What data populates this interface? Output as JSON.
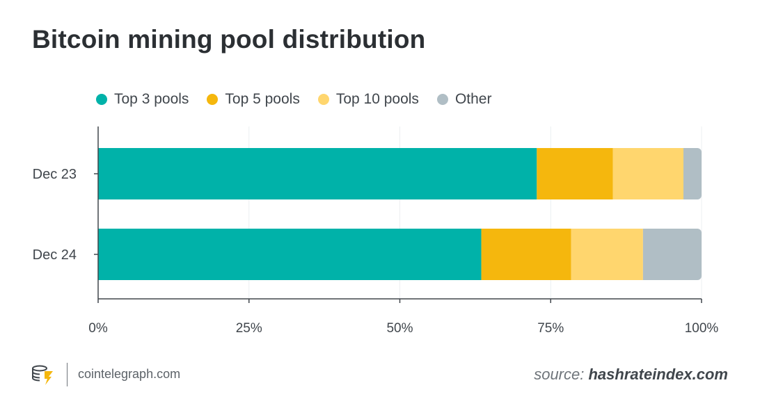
{
  "header": {
    "title": "Bitcoin mining pool distribution"
  },
  "footer": {
    "site": "cointelegraph.com",
    "source_prefix": "source:",
    "source_name": "hashrateindex.com",
    "logo_icon": "cointelegraph-logo-icon"
  },
  "chart_data": {
    "type": "bar",
    "orientation": "horizontal",
    "stacked": true,
    "title": "Bitcoin mining pool distribution",
    "categories": [
      "Dec 23",
      "Dec 24"
    ],
    "series": [
      {
        "name": "Top 3 pools",
        "color": "#00b2a9",
        "values": [
          72.7,
          63.5
        ]
      },
      {
        "name": "Top 5 pools",
        "color": "#f5b70d",
        "values": [
          12.6,
          14.9
        ]
      },
      {
        "name": "Top 10 pools",
        "color": "#ffd66e",
        "values": [
          11.7,
          11.9
        ]
      },
      {
        "name": "Other",
        "color": "#b0bec5",
        "values": [
          3.0,
          9.7
        ]
      }
    ],
    "xlim": [
      0,
      100
    ],
    "xticks": [
      "0%",
      "25%",
      "50%",
      "75%",
      "100%"
    ],
    "grid": true,
    "legend_position": "top-left"
  }
}
